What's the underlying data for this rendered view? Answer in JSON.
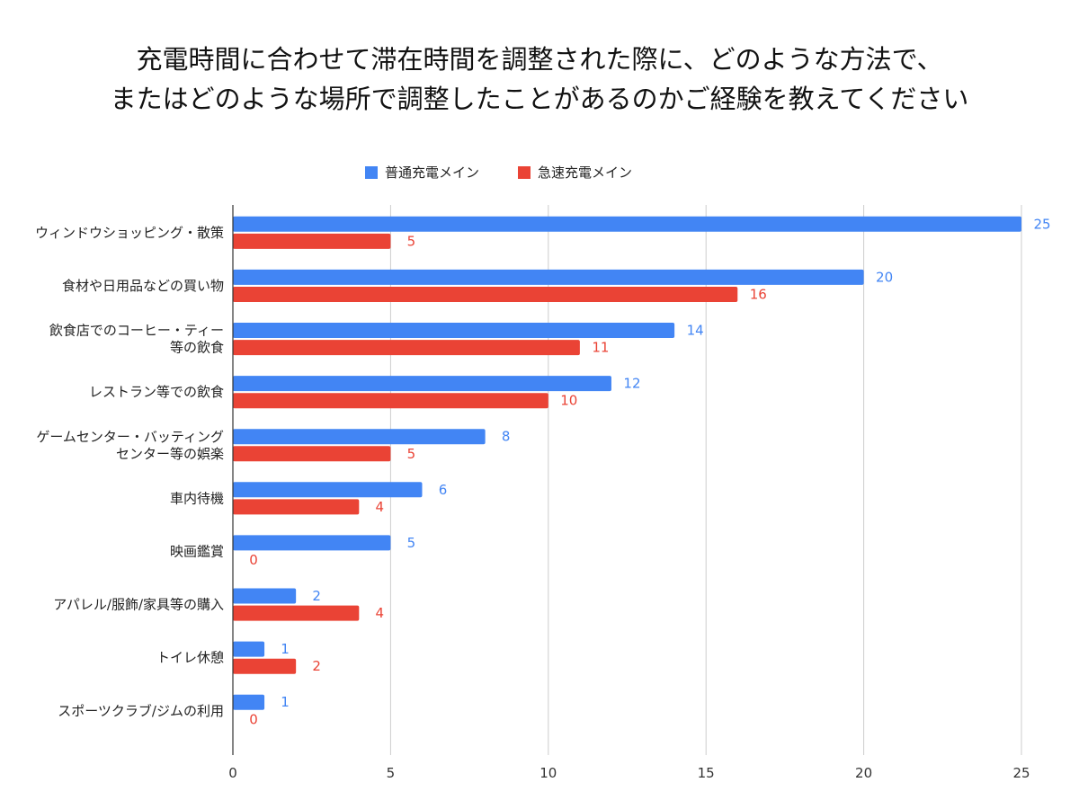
{
  "chart_data": {
    "type": "bar",
    "orientation": "horizontal",
    "title_lines": [
      "充電時間に合わせて滞在時間を調整された際に、どのような方法で、",
      "またはどのような場所で調整したことがあるのかご経験を教えてください"
    ],
    "categories": [
      [
        "ウィンドウショッピング・散策"
      ],
      [
        "食材や日用品などの買い物"
      ],
      [
        "飲食店でのコーヒー・ティー",
        "等の飲食"
      ],
      [
        "レストラン等での飲食"
      ],
      [
        "ゲームセンター・バッティング",
        "センター等の娯楽"
      ],
      [
        "車内待機"
      ],
      [
        "映画鑑賞"
      ],
      [
        "アパレル/服飾/家具等の購入"
      ],
      [
        "トイレ休憩"
      ],
      [
        "スポーツクラブ/ジムの利用"
      ]
    ],
    "series": [
      {
        "name": "普通充電メイン",
        "color": "#4285F4",
        "values": [
          25,
          20,
          14,
          12,
          8,
          6,
          5,
          2,
          1,
          1
        ]
      },
      {
        "name": "急速充電メイン",
        "color": "#EA4335",
        "values": [
          5,
          16,
          11,
          10,
          5,
          4,
          0,
          4,
          2,
          0
        ]
      }
    ],
    "xlim": [
      0,
      25
    ],
    "xticks": [
      0,
      5,
      10,
      15,
      20,
      25
    ],
    "grid": true,
    "legend_position": "top-center",
    "data_labels": true
  }
}
